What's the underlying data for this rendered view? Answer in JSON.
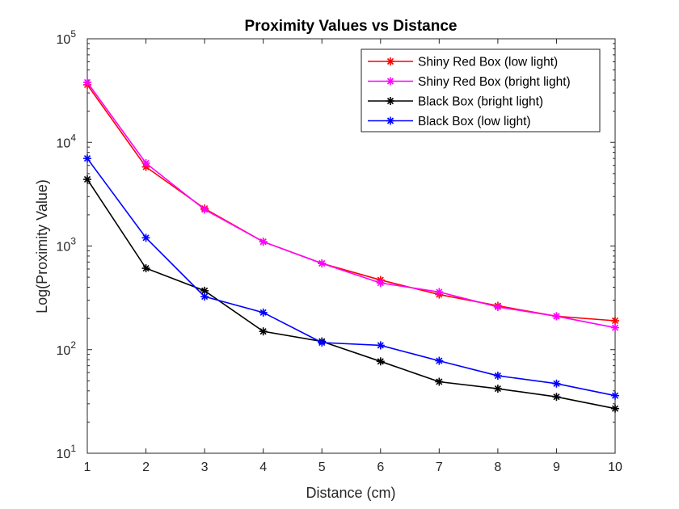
{
  "chart_data": {
    "type": "line",
    "title": "Proximity Values vs Distance",
    "xlabel": "Distance (cm)",
    "ylabel": "Log(Proximity Value)",
    "xlim": [
      1,
      10
    ],
    "ylim": [
      10,
      100000
    ],
    "y_scale": "log",
    "grid": false,
    "legend_position": "top-right",
    "x": [
      1,
      2,
      3,
      4,
      5,
      6,
      7,
      8,
      9,
      10
    ],
    "x_tick_labels": [
      "1",
      "2",
      "3",
      "4",
      "5",
      "6",
      "7",
      "8",
      "9",
      "10"
    ],
    "y_tick_labels": [
      {
        "base": "10",
        "exp": "1",
        "value": 10
      },
      {
        "base": "10",
        "exp": "2",
        "value": 100
      },
      {
        "base": "10",
        "exp": "3",
        "value": 1000
      },
      {
        "base": "10",
        "exp": "4",
        "value": 10000
      },
      {
        "base": "10",
        "exp": "5",
        "value": 100000
      }
    ],
    "series": [
      {
        "name": "Shiny Red Box (low light)",
        "color": "#ff0000",
        "marker": "asterisk",
        "values": [
          36000,
          5800,
          2300,
          1100,
          680,
          470,
          340,
          265,
          210,
          190
        ]
      },
      {
        "name": "Shiny Red Box (bright light)",
        "color": "#ff00ff",
        "marker": "asterisk",
        "values": [
          38000,
          6300,
          2250,
          1100,
          680,
          440,
          360,
          258,
          210,
          163
        ]
      },
      {
        "name": "Black Box (bright light)",
        "color": "#000000",
        "marker": "asterisk",
        "values": [
          4400,
          610,
          370,
          150,
          120,
          77,
          49,
          42,
          35,
          27
        ]
      },
      {
        "name": "Black Box (low light)",
        "color": "#0000ff",
        "marker": "asterisk",
        "values": [
          7000,
          1200,
          325,
          228,
          117,
          110,
          78,
          56,
          47,
          36
        ]
      }
    ]
  }
}
